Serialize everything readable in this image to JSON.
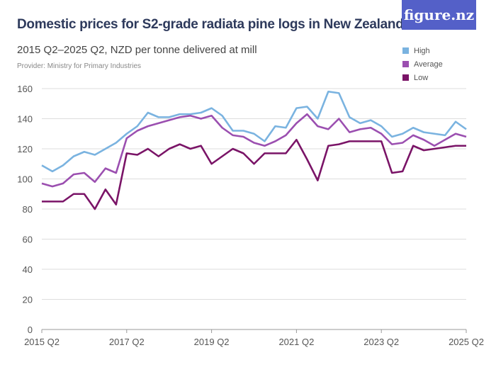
{
  "header": {
    "title": "Domestic prices for S2-grade radiata pine logs in New Zealand",
    "subtitle": "2015 Q2–2025 Q2, NZD per tonne delivered at mill",
    "provider": "Provider: Ministry for Primary Industries",
    "logo": "figure.nz",
    "logo_color": "#5460c8"
  },
  "chart_data": {
    "type": "line",
    "title": "Domestic prices for S2-grade radiata pine logs in New Zealand",
    "subtitle": "2015 Q2–2025 Q2, NZD per tonne delivered at mill",
    "x_tick_labels": [
      "2015 Q2",
      "2017 Q2",
      "2019 Q2",
      "2021 Q2",
      "2023 Q2",
      "2025 Q2"
    ],
    "x_tick_indices": [
      0,
      8,
      16,
      24,
      32,
      40
    ],
    "x": [
      "2015 Q2",
      "2015 Q3",
      "2015 Q4",
      "2016 Q1",
      "2016 Q2",
      "2016 Q3",
      "2016 Q4",
      "2017 Q1",
      "2017 Q2",
      "2017 Q3",
      "2017 Q4",
      "2018 Q1",
      "2018 Q2",
      "2018 Q3",
      "2018 Q4",
      "2019 Q1",
      "2019 Q2",
      "2019 Q3",
      "2019 Q4",
      "2020 Q1",
      "2020 Q2",
      "2020 Q3",
      "2020 Q4",
      "2021 Q1",
      "2021 Q2",
      "2021 Q3",
      "2021 Q4",
      "2022 Q1",
      "2022 Q2",
      "2022 Q3",
      "2022 Q4",
      "2023 Q1",
      "2023 Q2",
      "2023 Q3",
      "2023 Q4",
      "2024 Q1",
      "2024 Q2",
      "2024 Q3",
      "2024 Q4",
      "2025 Q1",
      "2025 Q2"
    ],
    "ylim": [
      0,
      160
    ],
    "y_ticks": [
      0,
      20,
      40,
      60,
      80,
      100,
      120,
      140,
      160
    ],
    "grid": true,
    "legend": "top-right",
    "series": [
      {
        "name": "High",
        "color": "#7ab3e0",
        "values": [
          109,
          105,
          109,
          115,
          118,
          116,
          120,
          124,
          130,
          135,
          144,
          141,
          141,
          143,
          143,
          144,
          147,
          142,
          132,
          132,
          130,
          125,
          135,
          134,
          147,
          148,
          140,
          158,
          157,
          141,
          137,
          139,
          135,
          128,
          130,
          134,
          131,
          130,
          129,
          138,
          133
        ]
      },
      {
        "name": "Average",
        "color": "#9b4fb0",
        "values": [
          97,
          95,
          97,
          103,
          104,
          98,
          107,
          104,
          127,
          132,
          135,
          137,
          139,
          141,
          142,
          140,
          142,
          134,
          129,
          128,
          124,
          122,
          125,
          129,
          137,
          143,
          135,
          133,
          140,
          131,
          133,
          134,
          130,
          123,
          124,
          129,
          126,
          122,
          126,
          130,
          128
        ]
      },
      {
        "name": "Low",
        "color": "#7a1467",
        "values": [
          85,
          85,
          85,
          90,
          90,
          80,
          93,
          83,
          117,
          116,
          120,
          115,
          120,
          123,
          120,
          122,
          110,
          115,
          120,
          117,
          110,
          117,
          117,
          117,
          126,
          113,
          99,
          122,
          123,
          125,
          125,
          125,
          125,
          104,
          105,
          122,
          119,
          120,
          121,
          122,
          122
        ]
      }
    ]
  }
}
